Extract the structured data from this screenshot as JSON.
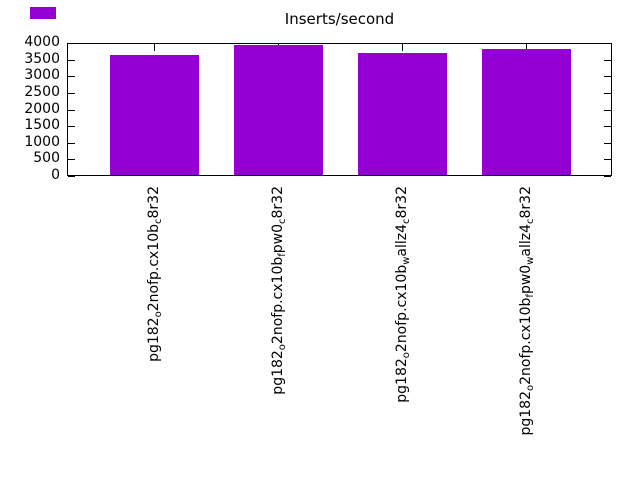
{
  "chart_data": {
    "type": "bar",
    "title": "Inserts/second",
    "categories": [
      "pg182_o2nofp.cx10b_c8r32",
      "pg182_o2nofp.cx10b_fpw0_c8r32",
      "pg182_o2nofp.cx10b_wallz4_c8r32",
      "pg182_o2nofp.cx10b_fpw0_wallz4_c8r32"
    ],
    "subscript_syntax": "underscore marks the next character as a subscript (gnuplot enhanced text)",
    "values": [
      3640,
      3930,
      3690,
      3820
    ],
    "ylim": [
      0,
      4000
    ],
    "yticks": [
      0,
      500,
      1000,
      1500,
      2000,
      2500,
      3000,
      3500,
      4000
    ],
    "xlabel": "",
    "ylabel": "",
    "grid": false,
    "legend": {
      "visible": true,
      "label": "",
      "position": "top-left-outside",
      "swatch_color": "#9400D3"
    },
    "bar_color": "#9400D3",
    "frame_color": "#000000",
    "text_color": "#000000",
    "background_color": "#FFFFFF",
    "x_tick_label_rotation_deg": -90
  }
}
